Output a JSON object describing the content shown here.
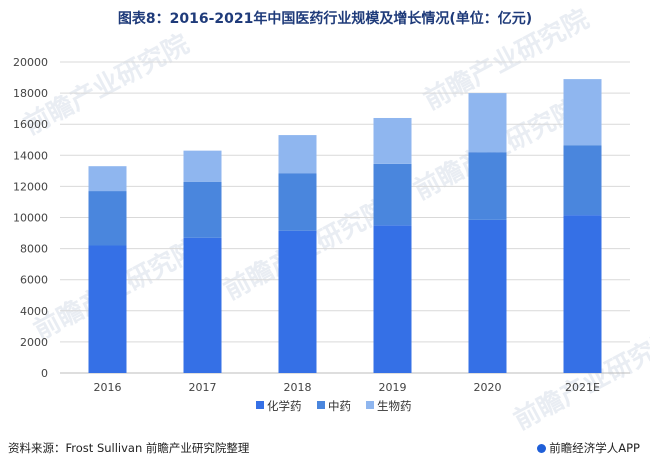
{
  "chart_data": {
    "type": "bar",
    "stacked": true,
    "title": "图表8：2016-2021年中国医药行业规模及增长情况(单位：亿元)",
    "categories": [
      "2016",
      "2017",
      "2018",
      "2019",
      "2020",
      "2021E"
    ],
    "series": [
      {
        "name": "化学药",
        "color": "#3570e6",
        "values": [
          8200,
          8700,
          9150,
          9500,
          9850,
          10150
        ]
      },
      {
        "name": "中药",
        "color": "#4a86dd",
        "values": [
          3500,
          3600,
          3700,
          3950,
          4350,
          4500
        ]
      },
      {
        "name": "生物药",
        "color": "#8fb6ef",
        "values": [
          1600,
          2000,
          2450,
          2950,
          3800,
          4250
        ]
      }
    ],
    "ylim": [
      0,
      20000
    ],
    "yticks": [
      0,
      2000,
      4000,
      6000,
      8000,
      10000,
      12000,
      14000,
      16000,
      18000,
      20000
    ],
    "grid": true,
    "legend": "bottom"
  },
  "watermark": "前瞻产业研究院",
  "footer": {
    "source": "资料来源：Frost Sullivan 前瞻产业研究院整理",
    "brand": "前瞻经济学人APP"
  }
}
